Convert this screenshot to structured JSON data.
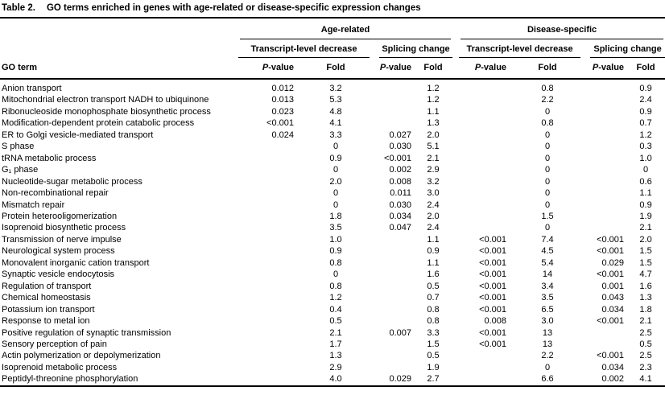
{
  "table": {
    "number_label": "Table 2.",
    "caption": "GO terms enriched in genes with age-related or disease-specific expression changes",
    "group_headers": [
      "Age-related",
      "Disease-specific"
    ],
    "subgroup_headers": [
      "Transcript-level decrease",
      "Splicing change",
      "Transcript-level decrease",
      "Splicing change"
    ],
    "row_header": "GO term",
    "value_headers": [
      "P-value",
      "Fold",
      "P-value",
      "Fold",
      "P-value",
      "Fold",
      "P-value",
      "Fold"
    ],
    "rows": [
      [
        "Anion transport",
        "0.012",
        "3.2",
        "",
        "1.2",
        "",
        "0.8",
        "",
        "0.9"
      ],
      [
        "Mitochondrial electron transport NADH to ubiquinone",
        "0.013",
        "5.3",
        "",
        "1.2",
        "",
        "2.2",
        "",
        "2.4"
      ],
      [
        "Ribonucleoside monophosphate biosynthetic process",
        "0.023",
        "4.8",
        "",
        "1.1",
        "",
        "0",
        "",
        "0.9"
      ],
      [
        "Modification-dependent protein catabolic process",
        "<0.001",
        "4.1",
        "",
        "1.3",
        "",
        "0.8",
        "",
        "0.7"
      ],
      [
        "ER to Golgi vesicle-mediated transport",
        "0.024",
        "3.3",
        "0.027",
        "2.0",
        "",
        "0",
        "",
        "1.2"
      ],
      [
        "S phase",
        "",
        "0",
        "0.030",
        "5.1",
        "",
        "0",
        "",
        "0.3"
      ],
      [
        "tRNA metabolic process",
        "",
        "0.9",
        "<0.001",
        "2.1",
        "",
        "0",
        "",
        "1.0"
      ],
      [
        "G₁ phase",
        "",
        "0",
        "0.002",
        "2.9",
        "",
        "0",
        "",
        "0"
      ],
      [
        "Nucleotide-sugar metabolic process",
        "",
        "2.0",
        "0.008",
        "3.2",
        "",
        "0",
        "",
        "0.6"
      ],
      [
        "Non-recombinational repair",
        "",
        "0",
        "0.011",
        "3.0",
        "",
        "0",
        "",
        "1.1"
      ],
      [
        "Mismatch repair",
        "",
        "0",
        "0.030",
        "2.4",
        "",
        "0",
        "",
        "0.9"
      ],
      [
        "Protein heterooligomerization",
        "",
        "1.8",
        "0.034",
        "2.0",
        "",
        "1.5",
        "",
        "1.9"
      ],
      [
        "Isoprenoid biosynthetic process",
        "",
        "3.5",
        "0.047",
        "2.4",
        "",
        "0",
        "",
        "2.1"
      ],
      [
        "Transmission of nerve impulse",
        "",
        "1.0",
        "",
        "1.1",
        "<0.001",
        "7.4",
        "<0.001",
        "2.0"
      ],
      [
        "Neurological system process",
        "",
        "0.9",
        "",
        "0.9",
        "<0.001",
        "4.5",
        "<0.001",
        "1.5"
      ],
      [
        "Monovalent inorganic cation transport",
        "",
        "0.8",
        "",
        "1.1",
        "<0.001",
        "5.4",
        "0.029",
        "1.5"
      ],
      [
        "Synaptic vesicle endocytosis",
        "",
        "0",
        "",
        "1.6",
        "<0.001",
        "14",
        "<0.001",
        "4.7"
      ],
      [
        "Regulation of transport",
        "",
        "0.8",
        "",
        "0.5",
        "<0.001",
        "3.4",
        "0.001",
        "1.6"
      ],
      [
        "Chemical homeostasis",
        "",
        "1.2",
        "",
        "0.7",
        "<0.001",
        "3.5",
        "0.043",
        "1.3"
      ],
      [
        "Potassium ion transport",
        "",
        "0.4",
        "",
        "0.8",
        "<0.001",
        "6.5",
        "0.034",
        "1.8"
      ],
      [
        "Response to metal ion",
        "",
        "0.5",
        "",
        "0.8",
        "0.008",
        "3.0",
        "<0.001",
        "2.1"
      ],
      [
        "Positive regulation of synaptic transmission",
        "",
        "2.1",
        "0.007",
        "3.3",
        "<0.001",
        "13",
        "",
        "2.5"
      ],
      [
        "Sensory perception of pain",
        "",
        "1.7",
        "",
        "1.5",
        "<0.001",
        "13",
        "",
        "0.5"
      ],
      [
        "Actin polymerization or depolymerization",
        "",
        "1.3",
        "",
        "0.5",
        "",
        "2.2",
        "<0.001",
        "2.5"
      ],
      [
        "Isoprenoid metabolic process",
        "",
        "2.9",
        "",
        "1.9",
        "",
        "0",
        "0.034",
        "2.3"
      ],
      [
        "Peptidyl-threonine phosphorylation",
        "",
        "4.0",
        "0.029",
        "2.7",
        "",
        "6.6",
        "0.002",
        "4.1"
      ]
    ]
  },
  "colors": {
    "background": "#ffffff",
    "text": "#000000",
    "rule": "#000000"
  }
}
